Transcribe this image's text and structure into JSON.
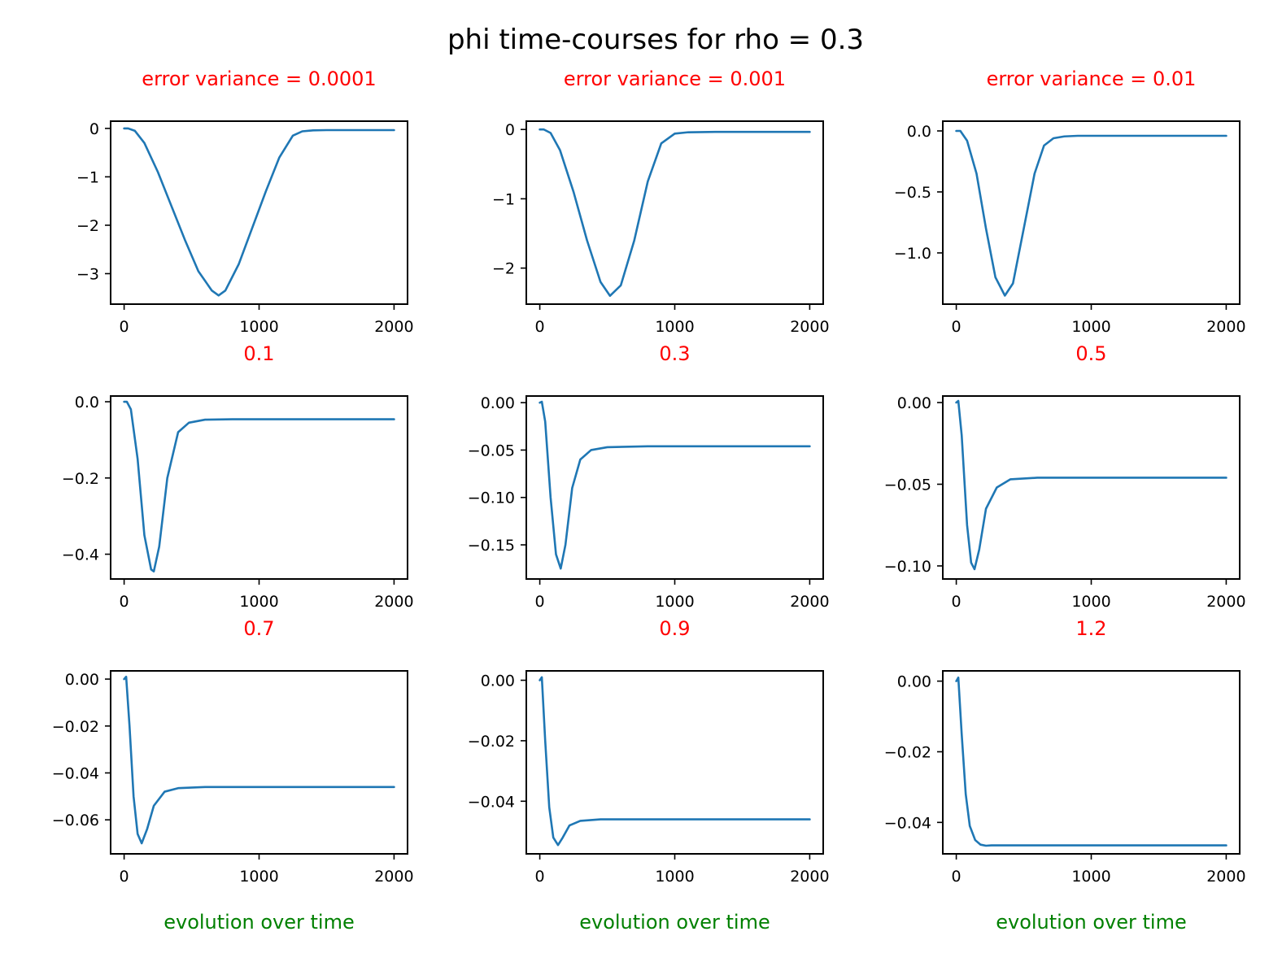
{
  "chart_data": {
    "type": "line",
    "suptitle": "phi time-courses for rho = 0.3",
    "colors": {
      "line": "#1f77b4",
      "panel_title": "#ff0000",
      "xlabel": "#008000",
      "axes": "#000000"
    },
    "grid": false,
    "legend": "none",
    "panels": [
      {
        "title": "error variance = 0.0001",
        "xlabel": "",
        "xlim": [
          -100,
          2100
        ],
        "ylim": [
          -3.63,
          0.15
        ],
        "xticks": [
          0,
          1000,
          2000
        ],
        "xtick_labels": [
          "0",
          "1000",
          "2000"
        ],
        "yticks": [
          0,
          -1,
          -2,
          -3
        ],
        "ytick_labels": [
          "0",
          "−1",
          "−2",
          "−3"
        ],
        "series": [
          {
            "x": [
              0,
              30,
              80,
              150,
              250,
              350,
              450,
              550,
              650,
              700,
              750,
              850,
              950,
              1050,
              1150,
              1250,
              1320,
              1400,
              1500,
              1700,
              2000
            ],
            "y": [
              0,
              0,
              -0.05,
              -0.3,
              -0.9,
              -1.6,
              -2.3,
              -2.95,
              -3.35,
              -3.45,
              -3.35,
              -2.8,
              -2.05,
              -1.3,
              -0.6,
              -0.15,
              -0.06,
              -0.04,
              -0.035,
              -0.035,
              -0.035
            ]
          }
        ]
      },
      {
        "title": "error variance = 0.001",
        "xlabel": "",
        "xlim": [
          -100,
          2100
        ],
        "ylim": [
          -2.52,
          0.12
        ],
        "xticks": [
          0,
          1000,
          2000
        ],
        "xtick_labels": [
          "0",
          "1000",
          "2000"
        ],
        "yticks": [
          0,
          -1,
          -2
        ],
        "ytick_labels": [
          "0",
          "−1",
          "−2"
        ],
        "series": [
          {
            "x": [
              0,
              30,
              80,
              150,
              250,
              350,
              450,
              520,
              600,
              700,
              800,
              900,
              1000,
              1100,
              1300,
              1600,
              2000
            ],
            "y": [
              0,
              0,
              -0.05,
              -0.3,
              -0.9,
              -1.6,
              -2.2,
              -2.4,
              -2.25,
              -1.6,
              -0.75,
              -0.2,
              -0.06,
              -0.04,
              -0.035,
              -0.035,
              -0.035
            ]
          }
        ]
      },
      {
        "title": "error variance = 0.01",
        "xlabel": "",
        "xlim": [
          -100,
          2100
        ],
        "ylim": [
          -1.42,
          0.08
        ],
        "xticks": [
          0,
          1000,
          2000
        ],
        "xtick_labels": [
          "0",
          "1000",
          "2000"
        ],
        "yticks": [
          0,
          -0.5,
          -1.0
        ],
        "ytick_labels": [
          "0.0",
          "−0.5",
          "−1.0"
        ],
        "series": [
          {
            "x": [
              0,
              30,
              80,
              150,
              220,
              290,
              360,
              420,
              500,
              580,
              650,
              720,
              800,
              900,
              1100,
              1500,
              2000
            ],
            "y": [
              0,
              0,
              -0.08,
              -0.35,
              -0.8,
              -1.2,
              -1.35,
              -1.25,
              -0.8,
              -0.35,
              -0.12,
              -0.06,
              -0.045,
              -0.04,
              -0.04,
              -0.04,
              -0.04
            ]
          }
        ]
      },
      {
        "title": "0.1",
        "xlabel": "",
        "xlim": [
          -100,
          2100
        ],
        "ylim": [
          -0.465,
          0.015
        ],
        "xticks": [
          0,
          1000,
          2000
        ],
        "xtick_labels": [
          "0",
          "1000",
          "2000"
        ],
        "yticks": [
          0,
          -0.2,
          -0.4
        ],
        "ytick_labels": [
          "0.0",
          "−0.2",
          "−0.4"
        ],
        "series": [
          {
            "x": [
              0,
              20,
              50,
              100,
              150,
              200,
              220,
              260,
              320,
              400,
              480,
              600,
              800,
              2000
            ],
            "y": [
              0,
              0,
              -0.02,
              -0.15,
              -0.35,
              -0.44,
              -0.445,
              -0.38,
              -0.2,
              -0.08,
              -0.055,
              -0.047,
              -0.046,
              -0.046
            ]
          }
        ]
      },
      {
        "title": "0.3",
        "xlabel": "",
        "xlim": [
          -100,
          2100
        ],
        "ylim": [
          -0.186,
          0.007
        ],
        "xticks": [
          0,
          1000,
          2000
        ],
        "xtick_labels": [
          "0",
          "1000",
          "2000"
        ],
        "yticks": [
          0,
          -0.05,
          -0.1,
          -0.15
        ],
        "ytick_labels": [
          "0.00",
          "−0.05",
          "−0.10",
          "−0.15"
        ],
        "series": [
          {
            "x": [
              0,
              15,
              40,
              80,
              120,
              155,
              190,
              240,
              300,
              380,
              500,
              800,
              2000
            ],
            "y": [
              0,
              0.001,
              -0.02,
              -0.1,
              -0.16,
              -0.175,
              -0.15,
              -0.09,
              -0.06,
              -0.05,
              -0.047,
              -0.046,
              -0.046
            ]
          }
        ]
      },
      {
        "title": "0.5",
        "xlabel": "",
        "xlim": [
          -100,
          2100
        ],
        "ylim": [
          -0.108,
          0.004
        ],
        "xticks": [
          0,
          1000,
          2000
        ],
        "xtick_labels": [
          "0",
          "1000",
          "2000"
        ],
        "yticks": [
          0,
          -0.05,
          -0.1
        ],
        "ytick_labels": [
          "0.00",
          "−0.05",
          "−0.10"
        ],
        "series": [
          {
            "x": [
              0,
              15,
              40,
              80,
              110,
              135,
              170,
              220,
              300,
              400,
              600,
              2000
            ],
            "y": [
              0,
              0.001,
              -0.02,
              -0.075,
              -0.098,
              -0.102,
              -0.09,
              -0.065,
              -0.052,
              -0.047,
              -0.046,
              -0.046
            ]
          }
        ]
      },
      {
        "title": "0.7",
        "xlabel": "evolution over time",
        "xlim": [
          -100,
          2100
        ],
        "ylim": [
          -0.0745,
          0.0035
        ],
        "xticks": [
          0,
          1000,
          2000
        ],
        "xtick_labels": [
          "0",
          "1000",
          "2000"
        ],
        "yticks": [
          0,
          -0.02,
          -0.04,
          -0.06
        ],
        "ytick_labels": [
          "0.00",
          "−0.02",
          "−0.04",
          "−0.06"
        ],
        "series": [
          {
            "x": [
              0,
              15,
              40,
              70,
              100,
              130,
              170,
              220,
              300,
              400,
              600,
              2000
            ],
            "y": [
              0,
              0.001,
              -0.02,
              -0.05,
              -0.066,
              -0.07,
              -0.064,
              -0.054,
              -0.048,
              -0.0465,
              -0.046,
              -0.046
            ]
          }
        ]
      },
      {
        "title": "0.9",
        "xlabel": "evolution over time",
        "xlim": [
          -100,
          2100
        ],
        "ylim": [
          -0.0574,
          0.0031
        ],
        "xticks": [
          0,
          1000,
          2000
        ],
        "xtick_labels": [
          "0",
          "1000",
          "2000"
        ],
        "yticks": [
          0,
          -0.02,
          -0.04
        ],
        "ytick_labels": [
          "0.00",
          "−0.02",
          "−0.04"
        ],
        "series": [
          {
            "x": [
              0,
              15,
              40,
              70,
              100,
              135,
              170,
              220,
              300,
              450,
              700,
              2000
            ],
            "y": [
              0,
              0.001,
              -0.02,
              -0.042,
              -0.052,
              -0.0545,
              -0.052,
              -0.048,
              -0.0465,
              -0.046,
              -0.046,
              -0.046
            ]
          }
        ]
      },
      {
        "title": "1.2",
        "xlabel": "evolution over time",
        "xlim": [
          -100,
          2100
        ],
        "ylim": [
          -0.0489,
          0.0029
        ],
        "xticks": [
          0,
          1000,
          2000
        ],
        "xtick_labels": [
          "0",
          "1000",
          "2000"
        ],
        "yticks": [
          0,
          -0.02,
          -0.04
        ],
        "ytick_labels": [
          "0.00",
          "−0.02",
          "−0.04"
        ],
        "series": [
          {
            "x": [
              0,
              15,
              40,
              70,
              100,
              140,
              180,
              220,
              260,
              350,
              500,
              2000
            ],
            "y": [
              0,
              0.001,
              -0.015,
              -0.032,
              -0.041,
              -0.045,
              -0.0463,
              -0.0466,
              -0.0465,
              -0.0465,
              -0.0465,
              -0.0465
            ]
          }
        ]
      }
    ]
  }
}
